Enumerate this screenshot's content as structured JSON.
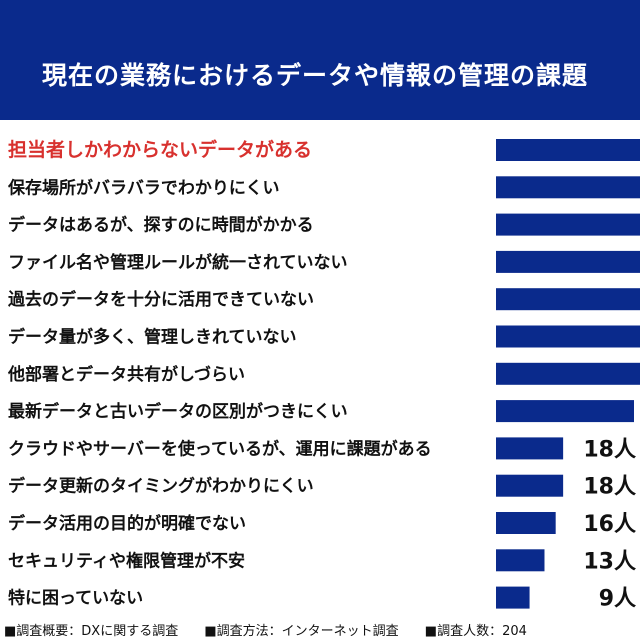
{
  "header": {
    "title": "現在の業務におけるデータや情報の管理の課題"
  },
  "chart_data": {
    "type": "bar",
    "orientation": "horizontal",
    "title": "現在の業務におけるデータや情報の管理の課題",
    "categories": [
      "担当者しかわからないデータがある",
      "保存場所がバラバラでわかりにくい",
      "データはあるが、探すのに時間がかかる",
      "ファイル名や管理ルールが統一されていない",
      "過去のデータを十分に活用できていない",
      "データ量が多く、管理しきれていない",
      "他部署とデータ共有がしづらい",
      "最新データと古いデータの区別がつきにくい",
      "クラウドやサーバーを使っているが、運用に課題がある",
      "データ更新のタイミングがわかりにくい",
      "データ活用の目的が明確でない",
      "セキュリティや権限管理が不安",
      "特に困っていない"
    ],
    "values": [
      null,
      null,
      null,
      null,
      null,
      null,
      null,
      37,
      18,
      18,
      16,
      13,
      9
    ],
    "value_labels": [
      "",
      "",
      "",
      "",
      "",
      "",
      "",
      "",
      "18人",
      "18人",
      "16人",
      "13人",
      "9人"
    ],
    "highlight_index": 0,
    "bar_color": "#0a2a8c",
    "highlight_color": "#d8312e"
  },
  "footer": {
    "items": [
      "■調査概要：DXに関する調査",
      "■調査方法：インターネット調査",
      "■調査人数：204"
    ]
  }
}
